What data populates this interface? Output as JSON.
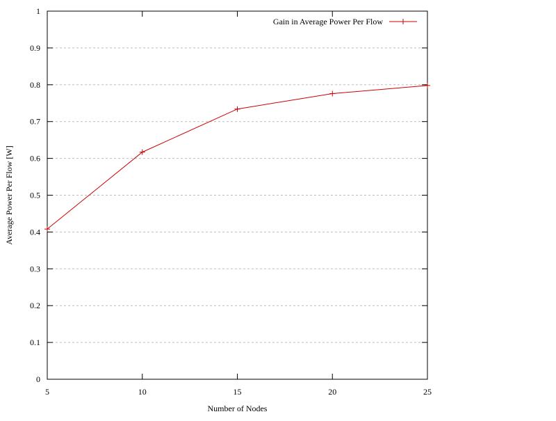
{
  "chart_data": {
    "type": "line",
    "title": "",
    "xlabel": "Number of Nodes",
    "ylabel": "Average Power Per Flow [W]",
    "xlim": [
      5,
      25
    ],
    "ylim": [
      0,
      1
    ],
    "xticks": [
      5,
      10,
      15,
      20,
      25
    ],
    "yticks": [
      0,
      0.1,
      0.2,
      0.3,
      0.4,
      0.5,
      0.6,
      0.7,
      0.8,
      0.9,
      1
    ],
    "ytick_labels": [
      "0",
      "0.1",
      "0.2",
      "0.3",
      "0.4",
      "0.5",
      "0.6",
      "0.7",
      "0.8",
      "0.9",
      "1"
    ],
    "xtick_labels": [
      "5",
      "10",
      "15",
      "20",
      "25"
    ],
    "grid": "horizontal-dashed",
    "legend_position": "top-right",
    "series": [
      {
        "name": "Gain in Average Power Per Flow",
        "color": "#cc0000",
        "marker": "plus",
        "x": [
          5,
          10,
          15,
          20,
          25
        ],
        "y": [
          0.408,
          0.617,
          0.734,
          0.776,
          0.798
        ]
      }
    ]
  }
}
